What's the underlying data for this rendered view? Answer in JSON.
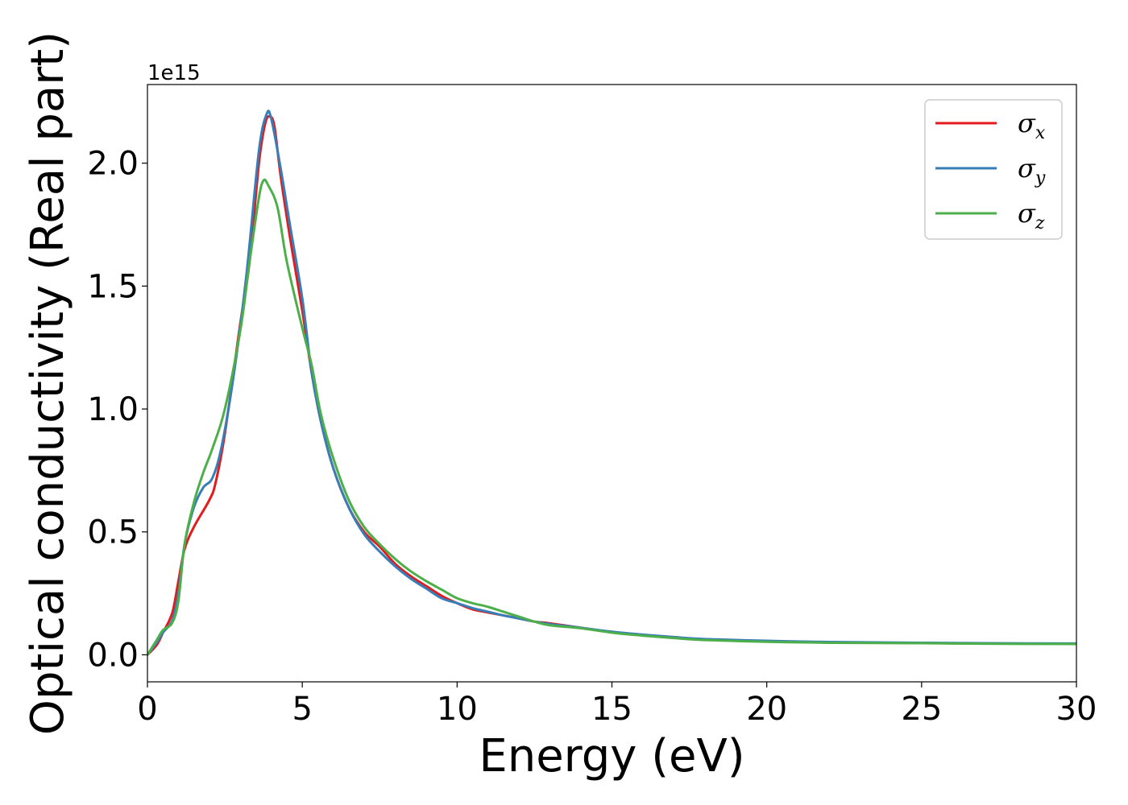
{
  "chart_data": {
    "type": "line",
    "xlabel": "Energy (eV)",
    "ylabel": "Optical conductivity (Real part)",
    "y_offset_label": "1e15",
    "xlim": [
      0,
      30
    ],
    "ylim": [
      -0.11,
      2.32
    ],
    "xticks": [
      0,
      5,
      10,
      15,
      20,
      25,
      30
    ],
    "xtick_labels": [
      "0",
      "5",
      "10",
      "15",
      "20",
      "25",
      "30"
    ],
    "yticks": [
      0.0,
      0.5,
      1.0,
      1.5,
      2.0
    ],
    "ytick_labels": [
      "0.0",
      "0.5",
      "1.0",
      "1.5",
      "2.0"
    ],
    "grid": false,
    "legend_position": "top-right",
    "series": [
      {
        "name": "σx",
        "symbol": "σ",
        "subscript": "x",
        "color": "#e41a1c",
        "points": [
          [
            0,
            0
          ],
          [
            0.3,
            0.04
          ],
          [
            0.5,
            0.09
          ],
          [
            0.8,
            0.17
          ],
          [
            1.0,
            0.3
          ],
          [
            1.2,
            0.43
          ],
          [
            1.5,
            0.52
          ],
          [
            2.0,
            0.63
          ],
          [
            2.2,
            0.7
          ],
          [
            2.5,
            0.9
          ],
          [
            3.0,
            1.35
          ],
          [
            3.3,
            1.6
          ],
          [
            3.6,
            2.0
          ],
          [
            3.8,
            2.16
          ],
          [
            3.95,
            2.19
          ],
          [
            4.1,
            2.15
          ],
          [
            4.3,
            1.95
          ],
          [
            4.6,
            1.7
          ],
          [
            5.0,
            1.4
          ],
          [
            5.3,
            1.15
          ],
          [
            5.6,
            0.95
          ],
          [
            6.0,
            0.76
          ],
          [
            6.5,
            0.6
          ],
          [
            7.0,
            0.5
          ],
          [
            7.5,
            0.44
          ],
          [
            8.0,
            0.37
          ],
          [
            8.5,
            0.32
          ],
          [
            9.0,
            0.28
          ],
          [
            9.5,
            0.24
          ],
          [
            10.0,
            0.21
          ],
          [
            10.5,
            0.185
          ],
          [
            11.0,
            0.172
          ],
          [
            11.5,
            0.16
          ],
          [
            12.0,
            0.148
          ],
          [
            12.5,
            0.135
          ],
          [
            13.0,
            0.128
          ],
          [
            14.0,
            0.11
          ],
          [
            15.0,
            0.092
          ],
          [
            16.0,
            0.08
          ],
          [
            17.0,
            0.07
          ],
          [
            18.0,
            0.063
          ],
          [
            20.0,
            0.055
          ],
          [
            22.0,
            0.05
          ],
          [
            25.0,
            0.048
          ],
          [
            27.0,
            0.046
          ],
          [
            30.0,
            0.045
          ]
        ]
      },
      {
        "name": "σy",
        "symbol": "σ",
        "subscript": "y",
        "color": "#377eb8",
        "points": [
          [
            0,
            0
          ],
          [
            0.3,
            0.05
          ],
          [
            0.5,
            0.09
          ],
          [
            0.8,
            0.14
          ],
          [
            1.0,
            0.25
          ],
          [
            1.2,
            0.45
          ],
          [
            1.5,
            0.6
          ],
          [
            1.8,
            0.68
          ],
          [
            2.1,
            0.72
          ],
          [
            2.4,
            0.85
          ],
          [
            2.8,
            1.15
          ],
          [
            3.2,
            1.55
          ],
          [
            3.6,
            2.05
          ],
          [
            3.85,
            2.2
          ],
          [
            4.0,
            2.18
          ],
          [
            4.3,
            1.98
          ],
          [
            4.6,
            1.75
          ],
          [
            5.0,
            1.45
          ],
          [
            5.3,
            1.15
          ],
          [
            5.6,
            0.95
          ],
          [
            6.0,
            0.76
          ],
          [
            6.5,
            0.6
          ],
          [
            7.0,
            0.49
          ],
          [
            7.5,
            0.42
          ],
          [
            8.0,
            0.36
          ],
          [
            8.5,
            0.31
          ],
          [
            9.0,
            0.27
          ],
          [
            9.5,
            0.23
          ],
          [
            10.0,
            0.21
          ],
          [
            10.5,
            0.19
          ],
          [
            11.0,
            0.175
          ],
          [
            11.5,
            0.16
          ],
          [
            12.0,
            0.148
          ],
          [
            12.5,
            0.135
          ],
          [
            13.0,
            0.125
          ],
          [
            14.0,
            0.11
          ],
          [
            15.0,
            0.094
          ],
          [
            16.0,
            0.082
          ],
          [
            17.0,
            0.072
          ],
          [
            18.0,
            0.064
          ],
          [
            20.0,
            0.057
          ],
          [
            22.0,
            0.052
          ],
          [
            25.0,
            0.049
          ],
          [
            27.0,
            0.047
          ],
          [
            30.0,
            0.046
          ]
        ]
      },
      {
        "name": "σz",
        "symbol": "σ",
        "subscript": "z",
        "color": "#4daf4a",
        "points": [
          [
            0,
            0
          ],
          [
            0.3,
            0.06
          ],
          [
            0.5,
            0.1
          ],
          [
            0.8,
            0.13
          ],
          [
            1.0,
            0.22
          ],
          [
            1.2,
            0.45
          ],
          [
            1.5,
            0.62
          ],
          [
            1.8,
            0.74
          ],
          [
            2.1,
            0.84
          ],
          [
            2.5,
            1.0
          ],
          [
            3.0,
            1.32
          ],
          [
            3.3,
            1.6
          ],
          [
            3.6,
            1.86
          ],
          [
            3.75,
            1.93
          ],
          [
            3.9,
            1.91
          ],
          [
            4.2,
            1.82
          ],
          [
            4.5,
            1.6
          ],
          [
            5.0,
            1.33
          ],
          [
            5.3,
            1.18
          ],
          [
            5.6,
            0.98
          ],
          [
            6.0,
            0.8
          ],
          [
            6.5,
            0.63
          ],
          [
            7.0,
            0.52
          ],
          [
            7.5,
            0.45
          ],
          [
            8.0,
            0.39
          ],
          [
            8.5,
            0.34
          ],
          [
            9.0,
            0.3
          ],
          [
            9.5,
            0.265
          ],
          [
            10.0,
            0.23
          ],
          [
            10.5,
            0.21
          ],
          [
            11.0,
            0.195
          ],
          [
            11.5,
            0.175
          ],
          [
            12.0,
            0.155
          ],
          [
            12.5,
            0.135
          ],
          [
            13.0,
            0.12
          ],
          [
            14.0,
            0.108
          ],
          [
            15.0,
            0.09
          ],
          [
            16.0,
            0.078
          ],
          [
            17.0,
            0.068
          ],
          [
            18.0,
            0.06
          ],
          [
            20.0,
            0.053
          ],
          [
            22.0,
            0.049
          ],
          [
            25.0,
            0.047
          ],
          [
            27.0,
            0.045
          ],
          [
            30.0,
            0.044
          ]
        ]
      }
    ]
  }
}
